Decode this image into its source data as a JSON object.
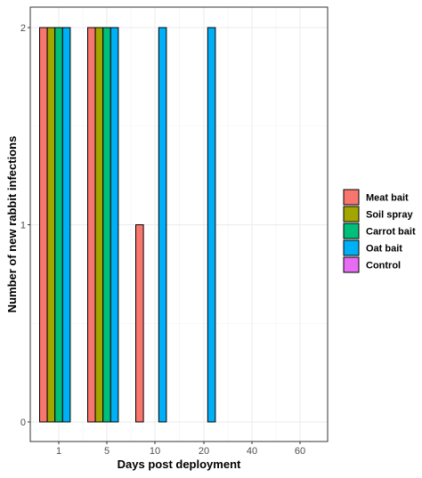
{
  "chart_data": {
    "type": "bar",
    "title": "",
    "xlabel": "Days post deployment",
    "ylabel": "Number of new rabbit infections",
    "categories": [
      "1",
      "5",
      "10",
      "20",
      "40",
      "60"
    ],
    "ylim": [
      0,
      2
    ],
    "y_ticks": [
      "0",
      "1",
      "2"
    ],
    "grid": true,
    "legend_position": "right",
    "series": [
      {
        "name": "Meat bait",
        "color": "#F8766D",
        "values": [
          2,
          2,
          1,
          0,
          0,
          0
        ]
      },
      {
        "name": "Soil spray",
        "color": "#A3A500",
        "values": [
          2,
          2,
          0,
          0,
          0,
          0
        ]
      },
      {
        "name": "Carrot bait",
        "color": "#00BF7D",
        "values": [
          2,
          2,
          0,
          0,
          0,
          0
        ]
      },
      {
        "name": "Oat bait",
        "color": "#00B0F6",
        "values": [
          2,
          2,
          2,
          2,
          0,
          0
        ]
      },
      {
        "name": "Control",
        "color": "#E76BF3",
        "values": [
          0,
          0,
          0,
          0,
          0,
          0
        ]
      }
    ]
  }
}
